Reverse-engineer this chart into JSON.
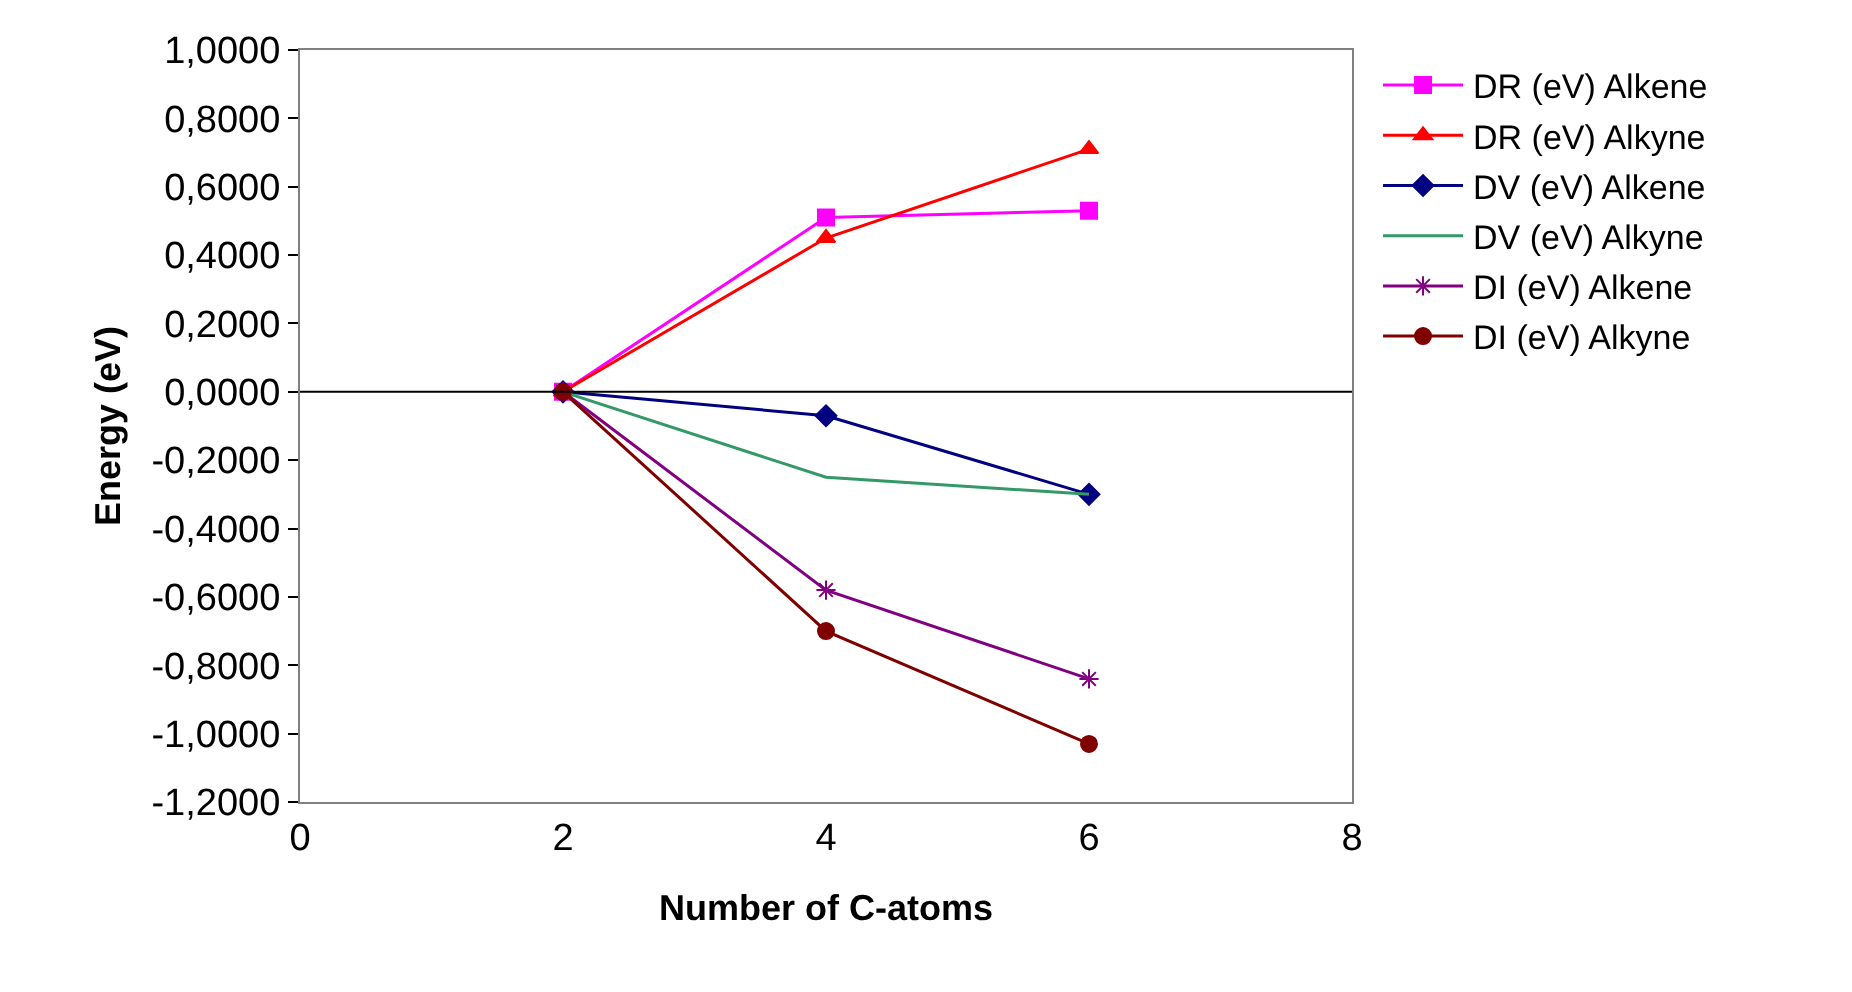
{
  "chart_data": {
    "type": "line",
    "xlabel": "Number of C-atoms",
    "ylabel": "Energy (eV)",
    "x": [
      2,
      4,
      6
    ],
    "series": [
      {
        "name": "DR (eV) Alkene",
        "color": "#ff00ff",
        "marker": "square",
        "values": [
          0,
          0.51,
          0.53
        ]
      },
      {
        "name": "DR (eV) Alkyne",
        "color": "#ff0000",
        "marker": "triangle",
        "values": [
          0,
          0.45,
          0.71
        ]
      },
      {
        "name": "DV (eV) Alkene",
        "color": "#000080",
        "marker": "diamond",
        "values": [
          0,
          -0.07,
          -0.3
        ]
      },
      {
        "name": "DV (eV) Alkyne",
        "color": "#339966",
        "marker": "none",
        "values": [
          0,
          -0.25,
          -0.3
        ]
      },
      {
        "name": "DI (eV) Alkene",
        "color": "#800080",
        "marker": "cross",
        "values": [
          0,
          -0.58,
          -0.84
        ]
      },
      {
        "name": "DI (eV) Alkyne",
        "color": "#800000",
        "marker": "circle",
        "values": [
          0,
          -0.7,
          -1.03
        ]
      }
    ],
    "xlim": [
      0,
      8
    ],
    "xticks": [
      0,
      2,
      4,
      6,
      8
    ],
    "ylim": [
      -1.2,
      1.0
    ],
    "yticks": [
      {
        "value": -1.2,
        "label": "-1,2000"
      },
      {
        "value": -1.0,
        "label": "-1,0000"
      },
      {
        "value": -0.8,
        "label": "-0,8000"
      },
      {
        "value": -0.6,
        "label": "-0,6000"
      },
      {
        "value": -0.4,
        "label": "-0,4000"
      },
      {
        "value": -0.2,
        "label": "-0,2000"
      },
      {
        "value": 0,
        "label": "0,0000"
      },
      {
        "value": 0.2,
        "label": "0,2000"
      },
      {
        "value": 0.4,
        "label": "0,4000"
      },
      {
        "value": 0.6,
        "label": "0,6000"
      },
      {
        "value": 0.8,
        "label": "0,8000"
      },
      {
        "value": 1.0,
        "label": "1,0000"
      }
    ],
    "ref_lines": [
      {
        "axis": "y",
        "value": 0,
        "color": "#000000"
      }
    ],
    "grid": false,
    "legend": "right",
    "line_style": "solid"
  }
}
